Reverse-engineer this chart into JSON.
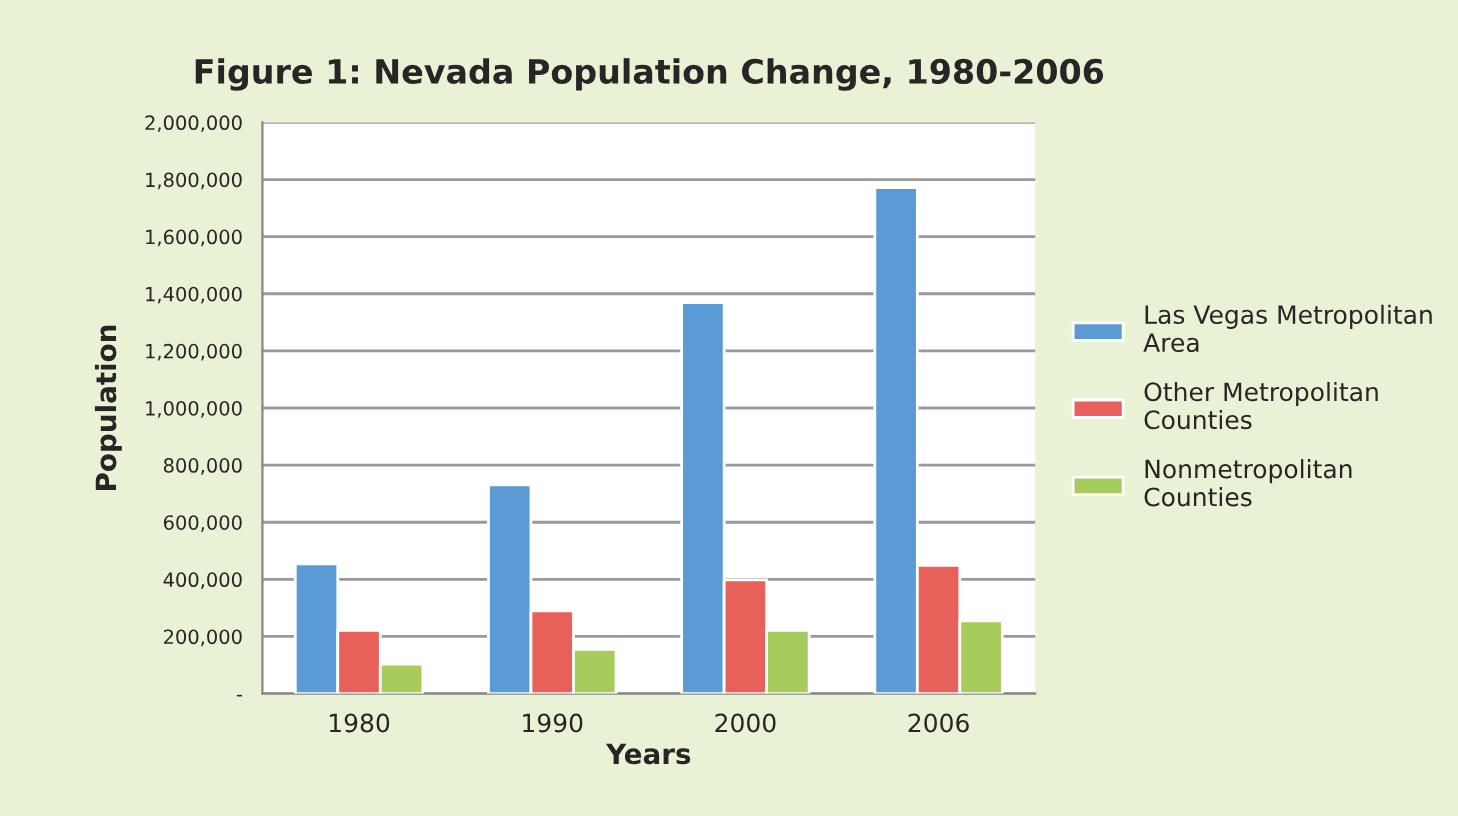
{
  "chart_data": {
    "type": "bar",
    "title": "Figure 1: Nevada Population Change, 1980-2006",
    "xlabel": "Years",
    "ylabel": "Population",
    "categories": [
      "1980",
      "1990",
      "2000",
      "2006"
    ],
    "series": [
      {
        "name": "Las Vegas Metropolitan\nArea",
        "color": "#5b9bd5",
        "values": [
          454000,
          731000,
          1369000,
          1772000
        ]
      },
      {
        "name": "Other Metropolitan\nCounties",
        "color": "#e8605a",
        "values": [
          221000,
          290000,
          398000,
          449000
        ]
      },
      {
        "name": "Nonmetropolitan\nCounties",
        "color": "#a6cc5c",
        "values": [
          103000,
          155000,
          221000,
          255000
        ]
      }
    ],
    "ylim": [
      0,
      2000000
    ],
    "yticks": [
      {
        "value": 0,
        "label": "-"
      },
      {
        "value": 200000,
        "label": "200,000"
      },
      {
        "value": 400000,
        "label": "400,000"
      },
      {
        "value": 600000,
        "label": "600,000"
      },
      {
        "value": 800000,
        "label": "800,000"
      },
      {
        "value": 1000000,
        "label": "1,000,000"
      },
      {
        "value": 1200000,
        "label": "1,200,000"
      },
      {
        "value": 1400000,
        "label": "1,400,000"
      },
      {
        "value": 1600000,
        "label": "1,600,000"
      },
      {
        "value": 1800000,
        "label": "1,800,000"
      },
      {
        "value": 2000000,
        "label": "2,000,000"
      }
    ],
    "grid": "y",
    "legend": "right"
  }
}
